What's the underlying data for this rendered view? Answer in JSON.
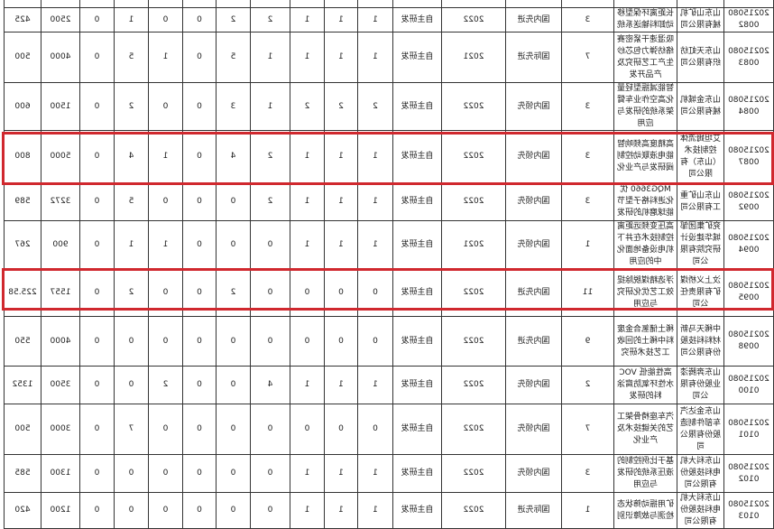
{
  "highlight_color": "#d0282e",
  "table": {
    "rows": [
      {
        "id": "",
        "company": "",
        "project": "",
        "num": "",
        "level": "",
        "year": "",
        "method": "",
        "values": [
          "",
          "",
          "",
          "",
          "",
          "",
          "",
          "",
          "",
          "",
          ""
        ]
      },
      {
        "id": "202150800082",
        "company": "山东山矿机械有限公司",
        "project": "长距离环保型移动卸料输送系统",
        "num": "3",
        "level": "国内先进",
        "year": "2022",
        "method": "自主研发",
        "values": [
          "1",
          "1",
          "1",
          "2",
          "2",
          "0",
          "0",
          "1",
          "0",
          "2500",
          "425"
        ]
      },
      {
        "id": "202150800083",
        "company": "山东天虹纺织有限公司",
        "project": "吸湿速干紧密赛络纺弹力包芯纱生产工艺研究及产品开发",
        "num": "7",
        "level": "国际先进",
        "year": "2021",
        "method": "自主研发",
        "values": [
          "1",
          "1",
          "1",
          "1",
          "5",
          "0",
          "1",
          "5",
          "0",
          "4000",
          "500"
        ]
      },
      {
        "id": "202150800084",
        "company": "山东金城机械有限公司",
        "project": "智能减振型轻量化高空作业车臂架系统的研发与应用",
        "num": "3",
        "level": "国内领先",
        "year": "2022",
        "method": "自主研发",
        "values": [
          "2",
          "2",
          "2",
          "1",
          "3",
          "0",
          "0",
          "2",
          "0",
          "1500",
          "600"
        ]
      },
      {
        "id": "202150800087",
        "company": "艾坦姆流体控制技术（山东）有限公司",
        "project": "高精度高频响智能电液联动控制阀研发与产业化",
        "num": "3",
        "level": "国内领先",
        "year": "2022",
        "method": "自主研发",
        "values": [
          "1",
          "1",
          "1",
          "2",
          "4",
          "0",
          "1",
          "4",
          "0",
          "5000",
          "800"
        ],
        "highlighted": true
      },
      {
        "id": "202150800092",
        "company": "山东山矿重工有限公司",
        "project": "MQG3660 优化进料格子型节能球磨机的研发",
        "num": "3",
        "level": "国内领先",
        "year": "2022",
        "method": "自主研发",
        "values": [
          "1",
          "1",
          "1",
          "2",
          "0",
          "0",
          "0",
          "5",
          "0",
          "3272",
          "589"
        ]
      },
      {
        "id": "202150800094",
        "company": "兖矿集团邹城华建设计研究院有限公司",
        "project": "高压变频远距离控制技术在井下机电设备地面化中的应用",
        "num": "1",
        "level": "国内领先",
        "year": "2021",
        "method": "自主研发",
        "values": [
          "1",
          "1",
          "1",
          "0",
          "0",
          "0",
          "1",
          "1",
          "0",
          "900",
          "267"
        ]
      },
      {
        "id": "202150800095",
        "company": "汶上义桥煤矿有限责任公司",
        "project": "浮选精煤脱除提效工艺优化研究与应用",
        "num": "11",
        "level": "国内先进",
        "year": "2022",
        "method": "自主研发",
        "values": [
          "0",
          "0",
          "0",
          "0",
          "2",
          "0",
          "0",
          "2",
          "0",
          "1557",
          "225.58"
        ],
        "highlighted": true
      },
      {
        "id": "202150800098",
        "company": "中稀天马新材料科技股份有限公司",
        "project": "稀土储氢合金废料中稀土的回收工艺技术研究",
        "num": "9",
        "level": "国内先进",
        "year": "2022",
        "method": "自主研发",
        "values": [
          "0",
          "0",
          "0",
          "0",
          "0",
          "0",
          "0",
          "0",
          "0",
          "4000",
          "550"
        ]
      },
      {
        "id": "202150800100",
        "company": "山东奔腾漆业股份有限公司",
        "project": "高性能低 VOC 水性环氧防腐涂料的研发",
        "num": "2",
        "level": "国内领先",
        "year": "2022",
        "method": "自主研发",
        "values": [
          "1",
          "1",
          "1",
          "4",
          "0",
          "0",
          "2",
          "0",
          "0",
          "3500",
          "1352"
        ]
      },
      {
        "id": "202150800101",
        "company": "山东金达汽车部件制造股份有限公司",
        "project": "汽车座椅骨架工艺的关键技术及产业化",
        "num": "7",
        "level": "国内领先",
        "year": "2022",
        "method": "自主研发",
        "values": [
          "0",
          "0",
          "0",
          "0",
          "0",
          "0",
          "0",
          "7",
          "0",
          "3000",
          "500"
        ]
      },
      {
        "id": "202150800102",
        "company": "山东科大机电科技股份有限公司",
        "project": "基于比例控制的液压系统的研发与应用",
        "num": "3",
        "level": "国内领先",
        "year": "2022",
        "method": "自主研发",
        "values": [
          "1",
          "1",
          "1",
          "0",
          "0",
          "0",
          "0",
          "0",
          "0",
          "1300",
          "585"
        ]
      },
      {
        "id": "202150800103",
        "company": "山东科大机电科技股份有限公司",
        "project": "矿用振动筛状态检测与故障识别",
        "num": "1",
        "level": "国际先进",
        "year": "2022",
        "method": "自主研发",
        "values": [
          "1",
          "1",
          "1",
          "0",
          "0",
          "0",
          "0",
          "0",
          "0",
          "1200",
          "420"
        ]
      }
    ]
  }
}
